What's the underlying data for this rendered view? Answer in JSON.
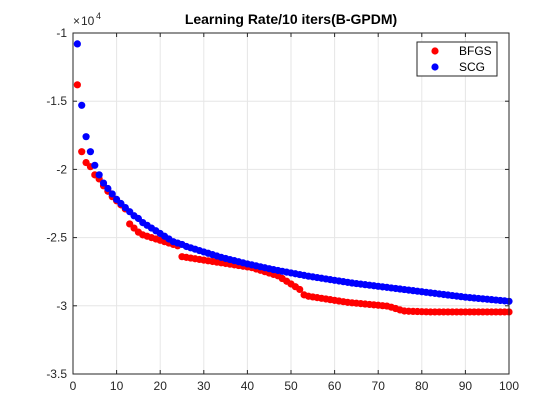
{
  "chart_data": {
    "type": "scatter",
    "title": "Learning Rate/10 iters(B-GPDM)",
    "xlabel": "",
    "ylabel": "",
    "xlim": [
      0,
      100
    ],
    "ylim": [
      -3.5,
      -1
    ],
    "y_exponent": {
      "base": "10",
      "power": "4",
      "multiplier": "×"
    },
    "xticks": [
      0,
      10,
      20,
      30,
      40,
      50,
      60,
      70,
      80,
      90,
      100
    ],
    "yticks": [
      -1,
      -1.5,
      -2,
      -2.5,
      -3,
      -3.5
    ],
    "ytick_labels": [
      "-1",
      "-1.5",
      "-2",
      "-2.5",
      "-3",
      "-3.5"
    ],
    "grid": true,
    "legend_position": "top-right",
    "series": [
      {
        "name": "BFGS",
        "color": "#ff0000",
        "x": [
          1,
          2,
          3,
          4,
          5,
          6,
          7,
          8,
          9,
          10,
          11,
          12,
          13,
          14,
          15,
          16,
          17,
          18,
          19,
          20,
          21,
          22,
          23,
          24,
          25,
          26,
          27,
          28,
          29,
          30,
          31,
          32,
          33,
          34,
          35,
          36,
          37,
          38,
          39,
          40,
          41,
          42,
          43,
          44,
          45,
          46,
          47,
          48,
          49,
          50,
          51,
          52,
          53,
          54,
          55,
          56,
          57,
          58,
          59,
          60,
          61,
          62,
          63,
          64,
          65,
          66,
          67,
          68,
          69,
          70,
          71,
          72,
          73,
          74,
          75,
          76,
          77,
          78,
          79,
          80,
          81,
          82,
          83,
          84,
          85,
          86,
          87,
          88,
          89,
          90,
          91,
          92,
          93,
          94,
          95,
          96,
          97,
          98,
          99,
          100
        ],
        "y": [
          -1.38,
          -1.87,
          -1.95,
          -1.98,
          -2.04,
          -2.07,
          -2.12,
          -2.16,
          -2.2,
          -2.23,
          -2.26,
          -2.29,
          -2.4,
          -2.43,
          -2.46,
          -2.48,
          -2.49,
          -2.5,
          -2.51,
          -2.52,
          -2.53,
          -2.54,
          -2.55,
          -2.56,
          -2.64,
          -2.645,
          -2.65,
          -2.655,
          -2.66,
          -2.665,
          -2.67,
          -2.675,
          -2.68,
          -2.685,
          -2.69,
          -2.695,
          -2.7,
          -2.705,
          -2.71,
          -2.715,
          -2.72,
          -2.73,
          -2.74,
          -2.75,
          -2.76,
          -2.77,
          -2.78,
          -2.8,
          -2.82,
          -2.84,
          -2.86,
          -2.88,
          -2.92,
          -2.93,
          -2.935,
          -2.94,
          -2.945,
          -2.95,
          -2.955,
          -2.96,
          -2.965,
          -2.97,
          -2.975,
          -2.978,
          -2.981,
          -2.984,
          -2.987,
          -2.99,
          -2.993,
          -2.996,
          -2.999,
          -3.002,
          -3.01,
          -3.02,
          -3.03,
          -3.038,
          -3.04,
          -3.041,
          -3.042,
          -3.043,
          -3.044,
          -3.045,
          -3.045,
          -3.045,
          -3.045,
          -3.045,
          -3.045,
          -3.045,
          -3.045,
          -3.045,
          -3.045,
          -3.045,
          -3.045,
          -3.045,
          -3.045,
          -3.045,
          -3.045,
          -3.045,
          -3.045,
          -3.045
        ]
      },
      {
        "name": "SCG",
        "color": "#0000ff",
        "x": [
          1,
          2,
          3,
          4,
          5,
          6,
          7,
          8,
          9,
          10,
          11,
          12,
          13,
          14,
          15,
          16,
          17,
          18,
          19,
          20,
          21,
          22,
          23,
          24,
          25,
          26,
          27,
          28,
          29,
          30,
          31,
          32,
          33,
          34,
          35,
          36,
          37,
          38,
          39,
          40,
          41,
          42,
          43,
          44,
          45,
          46,
          47,
          48,
          49,
          50,
          51,
          52,
          53,
          54,
          55,
          56,
          57,
          58,
          59,
          60,
          61,
          62,
          63,
          64,
          65,
          66,
          67,
          68,
          69,
          70,
          71,
          72,
          73,
          74,
          75,
          76,
          77,
          78,
          79,
          80,
          81,
          82,
          83,
          84,
          85,
          86,
          87,
          88,
          89,
          90,
          91,
          92,
          93,
          94,
          95,
          96,
          97,
          98,
          99,
          100
        ],
        "y": [
          -1.08,
          -1.53,
          -1.76,
          -1.87,
          -1.97,
          -2.04,
          -2.1,
          -2.14,
          -2.18,
          -2.22,
          -2.25,
          -2.28,
          -2.31,
          -2.34,
          -2.36,
          -2.39,
          -2.41,
          -2.43,
          -2.45,
          -2.47,
          -2.49,
          -2.51,
          -2.53,
          -2.54,
          -2.55,
          -2.565,
          -2.575,
          -2.585,
          -2.595,
          -2.605,
          -2.615,
          -2.625,
          -2.635,
          -2.645,
          -2.653,
          -2.661,
          -2.669,
          -2.677,
          -2.685,
          -2.693,
          -2.7,
          -2.707,
          -2.714,
          -2.721,
          -2.728,
          -2.735,
          -2.741,
          -2.747,
          -2.753,
          -2.759,
          -2.765,
          -2.771,
          -2.777,
          -2.783,
          -2.788,
          -2.793,
          -2.798,
          -2.803,
          -2.808,
          -2.813,
          -2.818,
          -2.823,
          -2.828,
          -2.833,
          -2.837,
          -2.841,
          -2.845,
          -2.849,
          -2.853,
          -2.857,
          -2.861,
          -2.865,
          -2.869,
          -2.873,
          -2.877,
          -2.881,
          -2.885,
          -2.889,
          -2.893,
          -2.897,
          -2.901,
          -2.905,
          -2.909,
          -2.913,
          -2.917,
          -2.921,
          -2.925,
          -2.929,
          -2.933,
          -2.937,
          -2.94,
          -2.943,
          -2.946,
          -2.949,
          -2.952,
          -2.955,
          -2.958,
          -2.961,
          -2.964,
          -2.967
        ]
      }
    ]
  }
}
